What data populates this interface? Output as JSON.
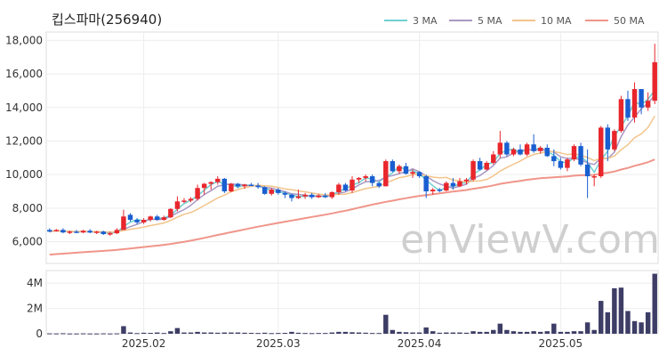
{
  "chart_data": {
    "title": "킵스파마(256940)",
    "watermark": "enViewV.com",
    "type": "candlestick",
    "colors": {
      "up": "#e8262c",
      "down": "#1a5fd1",
      "volume": "#3d3d66",
      "grid": "#ededed"
    },
    "price_axis": {
      "ticks": [
        6000,
        8000,
        10000,
        12000,
        14000,
        16000,
        18000
      ],
      "tick_labels": [
        "6,000",
        "8,000",
        "10,000",
        "12,000",
        "14,000",
        "16,000",
        "18,000"
      ],
      "ylim": [
        4700,
        18500
      ]
    },
    "volume_axis": {
      "ticks": [
        0,
        2000000,
        4000000
      ],
      "tick_labels": [
        "0",
        "2M",
        "4M"
      ],
      "ylim": [
        0,
        5000000
      ]
    },
    "x_axis": {
      "tick_labels": [
        {
          "label": "2025.02",
          "index": 14
        },
        {
          "label": "2025.03",
          "index": 34
        },
        {
          "label": "2025.04",
          "index": 55
        },
        {
          "label": "2025.05",
          "index": 76
        }
      ]
    },
    "legend": [
      {
        "name": "3 MA",
        "color": "#6fcfd1"
      },
      {
        "name": "5 MA",
        "color": "#a898c4"
      },
      {
        "name": "10 MA",
        "color": "#f2c48a"
      },
      {
        "name": "50 MA",
        "color": "#f0958a"
      }
    ],
    "candles": [
      [
        6700,
        6800,
        6550,
        6600,
        30000
      ],
      [
        6650,
        6750,
        6600,
        6700,
        25000
      ],
      [
        6700,
        6800,
        6500,
        6550,
        40000
      ],
      [
        6550,
        6650,
        6450,
        6600,
        20000
      ],
      [
        6600,
        6700,
        6500,
        6550,
        20000
      ],
      [
        6550,
        6700,
        6500,
        6650,
        30000
      ],
      [
        6650,
        6750,
        6500,
        6550,
        20000
      ],
      [
        6550,
        6650,
        6450,
        6600,
        20000
      ],
      [
        6600,
        6650,
        6400,
        6450,
        30000
      ],
      [
        6450,
        6600,
        6350,
        6500,
        20000
      ],
      [
        6500,
        6800,
        6450,
        6700,
        30000
      ],
      [
        6700,
        7900,
        6700,
        7500,
        600000
      ],
      [
        7600,
        7700,
        7200,
        7300,
        100000
      ],
      [
        7300,
        7400,
        7050,
        7150,
        50000
      ],
      [
        7150,
        7400,
        7050,
        7300,
        80000
      ],
      [
        7300,
        7550,
        7200,
        7500,
        70000
      ],
      [
        7500,
        7600,
        7250,
        7300,
        100000
      ],
      [
        7300,
        7550,
        7250,
        7450,
        60000
      ],
      [
        7450,
        8000,
        7400,
        7950,
        200000
      ],
      [
        7950,
        8700,
        7800,
        8400,
        450000
      ],
      [
        8400,
        8600,
        8300,
        8450,
        100000
      ],
      [
        8450,
        8650,
        8350,
        8550,
        100000
      ],
      [
        8550,
        9400,
        8450,
        9200,
        150000
      ],
      [
        9200,
        9500,
        8800,
        9450,
        100000
      ],
      [
        9450,
        9600,
        9100,
        9550,
        100000
      ],
      [
        9550,
        9900,
        9400,
        9750,
        80000
      ],
      [
        9750,
        9800,
        8900,
        9000,
        100000
      ],
      [
        9000,
        9500,
        8950,
        9450,
        100000
      ],
      [
        9450,
        9500,
        9200,
        9300,
        100000
      ],
      [
        9300,
        9450,
        9150,
        9400,
        80000
      ],
      [
        9400,
        9500,
        9300,
        9350,
        70000
      ],
      [
        9350,
        9500,
        9150,
        9250,
        60000
      ],
      [
        9250,
        9300,
        8800,
        8850,
        80000
      ],
      [
        8850,
        9200,
        8750,
        9100,
        50000
      ],
      [
        9100,
        9200,
        8800,
        8900,
        60000
      ],
      [
        8900,
        9000,
        8600,
        8800,
        70000
      ],
      [
        8800,
        8850,
        8400,
        8600,
        150000
      ],
      [
        8600,
        9100,
        8550,
        8700,
        80000
      ],
      [
        8700,
        8900,
        8550,
        8800,
        60000
      ],
      [
        8800,
        8900,
        8550,
        8650,
        50000
      ],
      [
        8650,
        8850,
        8600,
        8750,
        60000
      ],
      [
        8750,
        8900,
        8600,
        8650,
        60000
      ],
      [
        8650,
        9000,
        8550,
        8950,
        100000
      ],
      [
        8950,
        9500,
        8800,
        9400,
        150000
      ],
      [
        9400,
        9500,
        9000,
        9050,
        150000
      ],
      [
        9050,
        9900,
        8900,
        9700,
        120000
      ],
      [
        9700,
        9850,
        9500,
        9800,
        100000
      ],
      [
        9800,
        10000,
        9600,
        9900,
        80000
      ],
      [
        9900,
        10000,
        9300,
        9500,
        60000
      ],
      [
        9500,
        9550,
        9200,
        9300,
        60000
      ],
      [
        9300,
        10900,
        9300,
        10800,
        1500000
      ],
      [
        10800,
        10900,
        10150,
        10200,
        300000
      ],
      [
        10200,
        10600,
        10050,
        10500,
        150000
      ],
      [
        10500,
        10700,
        10000,
        10050,
        120000
      ],
      [
        10050,
        10300,
        9800,
        10150,
        100000
      ],
      [
        10150,
        10200,
        9800,
        9900,
        100000
      ],
      [
        9900,
        10000,
        8600,
        9000,
        500000
      ],
      [
        9000,
        9200,
        8800,
        9100,
        200000
      ],
      [
        9100,
        9200,
        8950,
        9050,
        80000
      ],
      [
        9050,
        9600,
        9000,
        9500,
        100000
      ],
      [
        9500,
        9800,
        9100,
        9300,
        100000
      ],
      [
        9300,
        9800,
        9250,
        9600,
        100000
      ],
      [
        9600,
        9800,
        9400,
        9700,
        80000
      ],
      [
        9700,
        10900,
        9600,
        10800,
        200000
      ],
      [
        10800,
        11000,
        10250,
        10300,
        150000
      ],
      [
        10300,
        10800,
        10250,
        10700,
        150000
      ],
      [
        10700,
        11400,
        10600,
        11200,
        300000
      ],
      [
        11200,
        12600,
        11000,
        11900,
        800000
      ],
      [
        11900,
        12000,
        11100,
        11200,
        300000
      ],
      [
        11200,
        11600,
        11100,
        11500,
        200000
      ],
      [
        11500,
        11800,
        11150,
        11200,
        150000
      ],
      [
        11200,
        11900,
        11100,
        11800,
        150000
      ],
      [
        11800,
        12400,
        11300,
        11400,
        200000
      ],
      [
        11400,
        11700,
        11250,
        11600,
        150000
      ],
      [
        11600,
        11800,
        11050,
        11100,
        200000
      ],
      [
        11100,
        11500,
        10500,
        10800,
        800000
      ],
      [
        10800,
        11000,
        10300,
        10400,
        150000
      ],
      [
        10400,
        11000,
        10200,
        10900,
        150000
      ],
      [
        10900,
        11800,
        10800,
        11700,
        200000
      ],
      [
        11700,
        11900,
        10500,
        10600,
        200000
      ],
      [
        10600,
        11500,
        8600,
        9900,
        900000
      ],
      [
        9900,
        10000,
        9300,
        9900,
        300000
      ],
      [
        9900,
        12900,
        9800,
        12800,
        2600000
      ],
      [
        12800,
        13000,
        10800,
        11500,
        1700000
      ],
      [
        11500,
        12700,
        11400,
        12600,
        3600000
      ],
      [
        12600,
        14700,
        12500,
        14500,
        3650000
      ],
      [
        14500,
        15000,
        13200,
        13400,
        1800000
      ],
      [
        13400,
        15500,
        13100,
        15100,
        1000000
      ],
      [
        15100,
        15000,
        13600,
        14000,
        900000
      ],
      [
        14000,
        14900,
        13800,
        14400,
        1700000
      ],
      [
        14400,
        17800,
        14200,
        16700,
        4750000
      ]
    ]
  }
}
